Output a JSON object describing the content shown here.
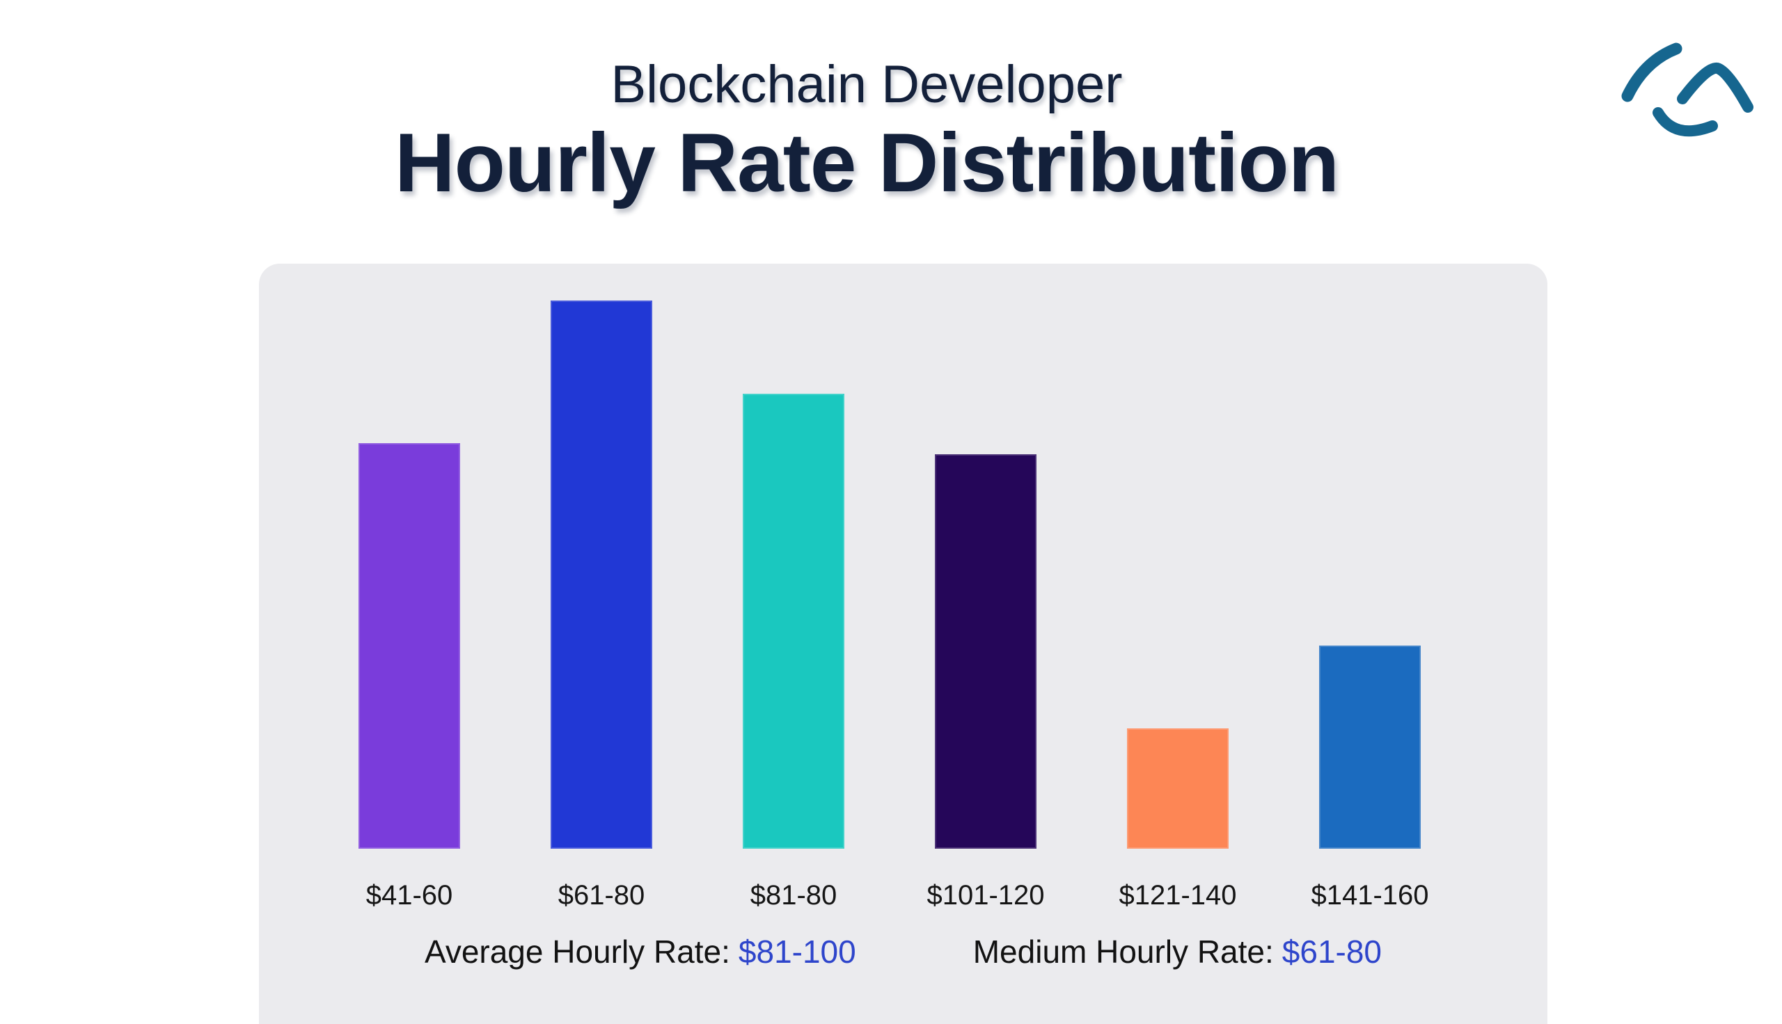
{
  "page": {
    "title_line1": "Blockchain Developer",
    "title_line2": "Hourly Rate Distribution",
    "background_color": "#ffffff",
    "title_color": "#13203a"
  },
  "logo": {
    "name": "brand-logo",
    "color": "#16668f"
  },
  "chart_data": {
    "type": "bar",
    "title": "Blockchain Developer Hourly Rate Distribution",
    "xlabel": "",
    "ylabel": "",
    "categories": [
      "$41-60",
      "$61-80",
      "$81-80",
      "$101-120",
      "$121-140",
      "$141-160"
    ],
    "values": [
      74,
      100,
      83,
      72,
      22,
      37
    ],
    "value_note": "relative heights (no value axis shown in image)",
    "ylim": [
      0,
      100
    ],
    "bar_colors": [
      "#7a3cdb",
      "#2138d5",
      "#1ac8bf",
      "#250659",
      "#fd8655",
      "#1b6bbf"
    ],
    "panel_background": "#ebebee",
    "grid": false,
    "legend": false
  },
  "stats": {
    "average_label": "Average Hourly Rate:",
    "average_value": "$81-100",
    "medium_label": "Medium Hourly Rate:",
    "medium_value": "$61-80",
    "label_color": "#121212",
    "value_color": "#2e45cb"
  }
}
